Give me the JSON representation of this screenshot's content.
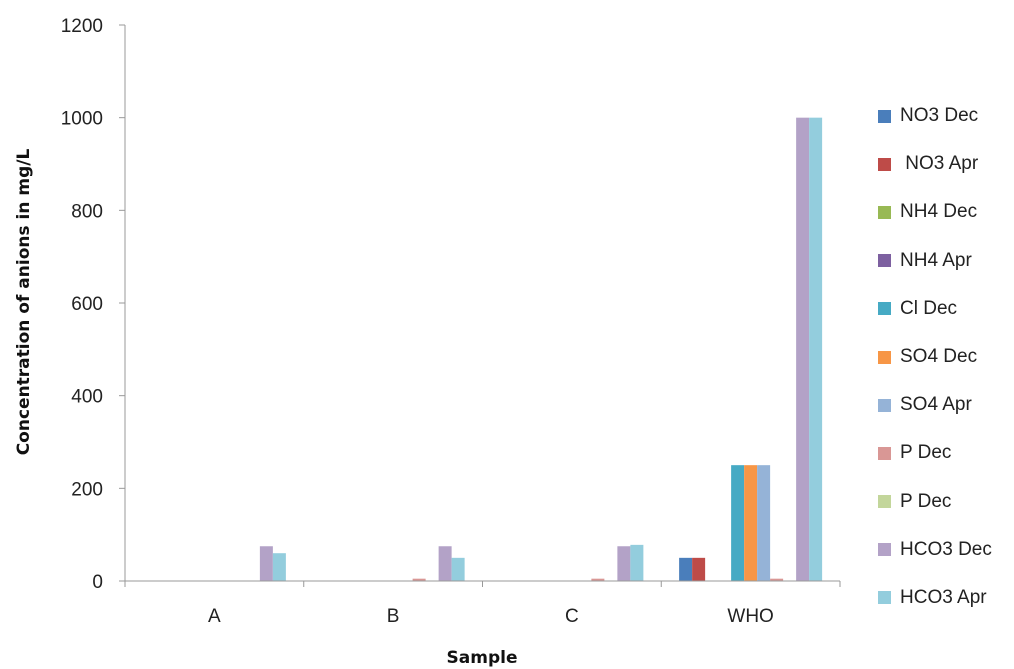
{
  "chart_data": {
    "type": "bar",
    "xlabel": "Sample",
    "ylabel": "Concentration of anions in mg/L",
    "ylim": [
      0,
      1200
    ],
    "yticks": [
      0,
      200,
      400,
      600,
      800,
      1000,
      1200
    ],
    "grid": false,
    "legend_position": "right",
    "categories": [
      "A",
      "B",
      "C",
      "WHO"
    ],
    "series": [
      {
        "name": "NO3 Dec",
        "color": "#4a7ebb",
        "values": [
          0,
          0,
          0,
          50
        ]
      },
      {
        "name": " NO3 Apr",
        "color": "#be4b48",
        "values": [
          0,
          0,
          0,
          50
        ]
      },
      {
        "name": "NH4 Dec",
        "color": "#98b954",
        "values": [
          0,
          0,
          0,
          0
        ]
      },
      {
        "name": "NH4 Apr",
        "color": "#7d60a0",
        "values": [
          0,
          0,
          0,
          0
        ]
      },
      {
        "name": "Cl Dec",
        "color": "#46aac4",
        "values": [
          0,
          0,
          0,
          250
        ]
      },
      {
        "name": "SO4 Dec",
        "color": "#f79646",
        "values": [
          0,
          0,
          0,
          250
        ]
      },
      {
        "name": "SO4 Apr",
        "color": "#95b3d7",
        "values": [
          0,
          0,
          0,
          250
        ]
      },
      {
        "name": "P Dec",
        "color": "#d99795",
        "values": [
          0,
          5,
          5,
          5
        ]
      },
      {
        "name": "P Dec",
        "color": "#c3d69b",
        "values": [
          0,
          0,
          0,
          0
        ]
      },
      {
        "name": "HCO3 Dec",
        "color": "#b3a2c7",
        "values": [
          75,
          75,
          75,
          1000
        ]
      },
      {
        "name": "HCO3 Apr",
        "color": "#93cddd",
        "values": [
          60,
          50,
          78,
          1000
        ]
      }
    ]
  }
}
